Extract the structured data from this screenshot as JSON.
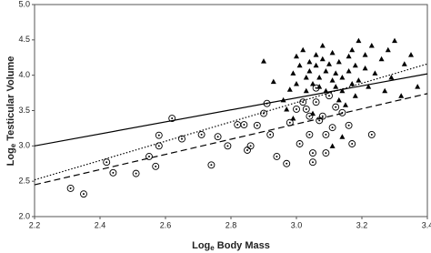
{
  "chart_data": {
    "type": "scatter",
    "xlabel_parts": [
      "Log",
      "e",
      " Body Mass"
    ],
    "ylabel_parts": [
      "Log",
      "e",
      " Testicular Volume"
    ],
    "xlim": [
      2.2,
      3.4
    ],
    "ylim": [
      2.0,
      5.0
    ],
    "xticks": [
      2.2,
      2.4,
      2.6,
      2.8,
      {
        "value": 3,
        "label": "3.0"
      },
      3.2,
      3.4
    ],
    "yticks": [
      {
        "value": 2,
        "label": "2.0"
      },
      2.5,
      {
        "value": 3,
        "label": "3.0"
      },
      3.5,
      {
        "value": 4,
        "label": "4.0"
      },
      4.5,
      {
        "value": 5,
        "label": "5.0"
      }
    ],
    "series": [
      {
        "marker": "triangle",
        "color": "#000000",
        "x": [
          2.9,
          2.93,
          2.96,
          2.98,
          2.99,
          3.0,
          3.0,
          3.01,
          3.02,
          3.03,
          3.03,
          3.04,
          3.04,
          3.05,
          3.06,
          3.06,
          3.07,
          3.07,
          3.08,
          3.08,
          3.09,
          3.09,
          3.1,
          3.11,
          3.11,
          3.12,
          3.12,
          3.13,
          3.13,
          3.14,
          3.14,
          3.15,
          3.16,
          3.16,
          3.17,
          3.17,
          3.18,
          3.18,
          3.19,
          3.19,
          3.21,
          3.21,
          3.22,
          3.23,
          3.24,
          3.26,
          3.27,
          3.28,
          3.29,
          3.3,
          3.32,
          3.33,
          3.35,
          3.37,
          2.97,
          2.99,
          3.05,
          3.11,
          3.14
        ],
        "values": [
          4.2,
          3.91,
          3.65,
          3.8,
          4.03,
          4.27,
          3.88,
          4.14,
          4.36,
          3.97,
          3.78,
          4.19,
          4.06,
          3.88,
          4.29,
          4.14,
          3.97,
          3.84,
          4.42,
          4.23,
          4.06,
          3.78,
          4.16,
          3.93,
          4.32,
          4.03,
          3.84,
          3.65,
          4.19,
          3.97,
          3.78,
          3.58,
          4.27,
          4.06,
          3.88,
          4.36,
          4.14,
          3.71,
          4.49,
          3.93,
          4.29,
          4.1,
          3.84,
          4.42,
          4.03,
          4.23,
          3.78,
          4.36,
          3.97,
          4.49,
          3.71,
          4.16,
          4.29,
          3.84,
          3.52,
          3.39,
          3.46,
          3.0,
          3.13
        ]
      },
      {
        "marker": "circle-dot",
        "color": "#000000",
        "x": [
          2.31,
          2.35,
          2.42,
          2.44,
          2.51,
          2.55,
          2.57,
          2.58,
          2.58,
          2.62,
          2.65,
          2.71,
          2.74,
          2.76,
          2.79,
          2.82,
          2.84,
          2.85,
          2.86,
          2.88,
          2.9,
          2.91,
          2.92,
          2.94,
          2.97,
          2.98,
          3.0,
          3.01,
          3.02,
          3.03,
          3.04,
          3.04,
          3.05,
          3.05,
          3.06,
          3.06,
          3.07,
          3.08,
          3.09,
          3.09,
          3.1,
          3.11,
          3.12,
          3.14,
          3.16,
          3.17,
          3.23
        ],
        "values": [
          2.4,
          2.32,
          2.77,
          2.62,
          2.61,
          2.85,
          2.71,
          3.0,
          3.15,
          3.39,
          3.1,
          3.16,
          2.73,
          3.13,
          3.0,
          3.3,
          3.3,
          2.94,
          3.0,
          3.29,
          3.46,
          3.6,
          3.16,
          2.85,
          2.75,
          3.33,
          3.52,
          3.03,
          3.62,
          3.52,
          3.42,
          3.16,
          2.9,
          2.77,
          3.82,
          3.62,
          3.36,
          3.42,
          2.9,
          3.16,
          3.71,
          3.26,
          3.55,
          3.47,
          3.29,
          3.03,
          3.16
        ]
      },
      {
        "marker": "none",
        "line": "solid",
        "color": "#000000",
        "x": [
          2.2,
          3.4
        ],
        "values": [
          3.0,
          4.02
        ]
      },
      {
        "marker": "none",
        "line": "dotted",
        "color": "#000000",
        "x": [
          2.2,
          3.4
        ],
        "values": [
          2.52,
          4.16
        ]
      },
      {
        "marker": "none",
        "line": "dashed",
        "color": "#000000",
        "x": [
          2.2,
          3.4
        ],
        "values": [
          2.45,
          3.74
        ]
      }
    ]
  }
}
